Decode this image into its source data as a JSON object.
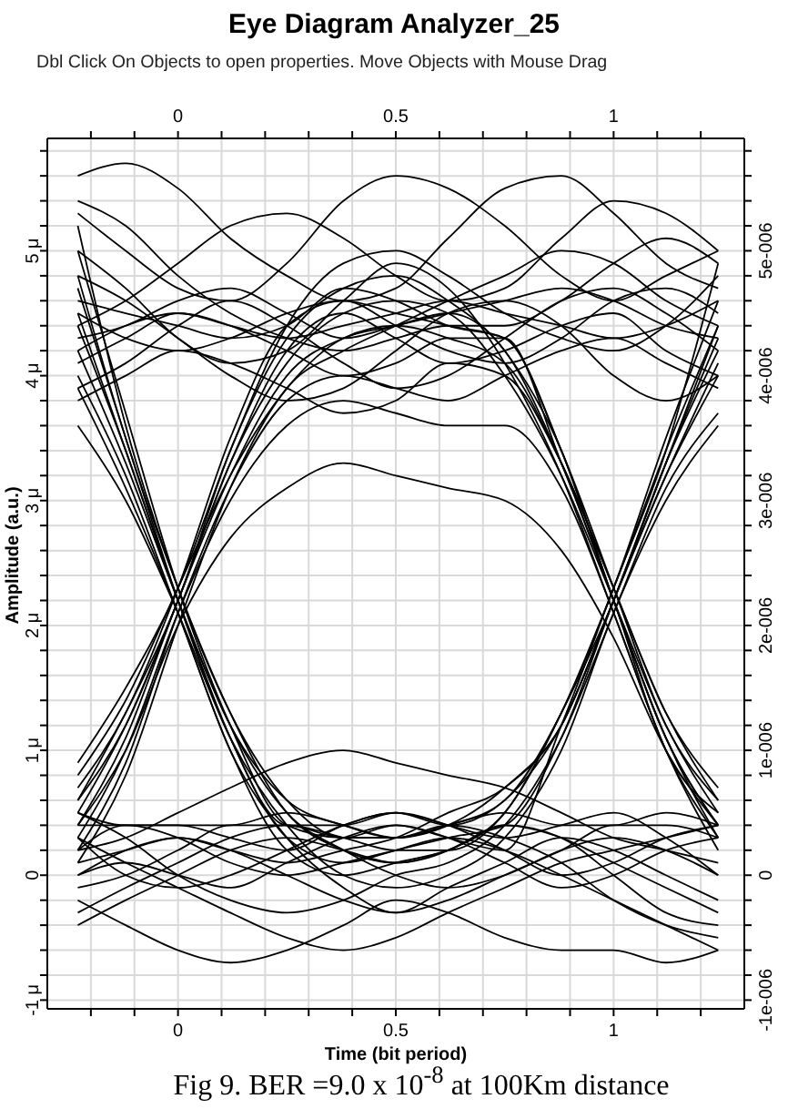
{
  "chart_data": {
    "type": "line",
    "title": "Eye Diagram Analyzer_25",
    "subtitle": "Dbl Click On Objects to open properties. Move Objects with Mouse Drag",
    "xlabel": "Time (bit period)",
    "ylabel": "Amplitude (a.u.)",
    "annotations": [
      "Fig 9. BER =9.0 x 10$^{-8}$ at 100Km distance"
    ],
    "x": [
      -0.23,
      -0.12,
      0,
      0.12,
      0.25,
      0.38,
      0.5,
      0.62,
      0.75,
      0.88,
      1,
      1.12,
      1.24
    ],
    "series": [
      {
        "color": "#000000",
        "values": [
          5.6,
          5.7,
          5.5,
          5.1,
          4.8,
          4.6,
          4.7,
          5.1,
          5.5,
          5.6,
          5.3,
          4.9,
          4.7
        ]
      },
      {
        "color": "#000000",
        "values": [
          5.3,
          5.0,
          4.7,
          4.6,
          4.9,
          5.4,
          5.6,
          5.5,
          5.2,
          4.8,
          4.6,
          4.8,
          5.0
        ]
      },
      {
        "color": "#000000",
        "values": [
          4.4,
          4.6,
          4.9,
          5.2,
          5.3,
          5.1,
          4.8,
          4.6,
          4.7,
          5.1,
          5.4,
          5.3,
          5.0
        ]
      },
      {
        "color": "#000000",
        "values": [
          4.5,
          4.3,
          4.2,
          4.3,
          4.5,
          4.6,
          4.4,
          4.2,
          4.1,
          4.3,
          4.6,
          4.7,
          4.5
        ]
      },
      {
        "color": "#000000",
        "values": [
          3.9,
          4.1,
          4.4,
          4.6,
          4.4,
          4.1,
          3.9,
          4.0,
          4.3,
          4.6,
          4.7,
          4.5,
          4.2
        ]
      },
      {
        "color": "#000000",
        "values": [
          4.8,
          4.6,
          4.3,
          4.0,
          3.8,
          3.9,
          4.2,
          4.5,
          4.6,
          4.4,
          4.0,
          3.8,
          4.0
        ]
      },
      {
        "color": "#000000",
        "values": [
          4.2,
          4.4,
          4.5,
          4.4,
          4.3,
          4.4,
          4.5,
          4.6,
          4.5,
          4.4,
          4.3,
          4.4,
          4.6
        ]
      },
      {
        "color": "#000000",
        "values": [
          5.4,
          5.2,
          4.8,
          4.5,
          4.3,
          4.2,
          4.3,
          4.4,
          4.4,
          4.6,
          4.9,
          5.1,
          4.9
        ]
      },
      {
        "color": "#000000",
        "values": [
          0.1,
          0.2,
          0.3,
          0.2,
          0,
          -0.2,
          -0.3,
          -0.1,
          0.1,
          0.3,
          0.2,
          0,
          -0.2
        ]
      },
      {
        "color": "#000000",
        "values": [
          -0.4,
          -0.2,
          0,
          0.2,
          0.3,
          0.2,
          0.1,
          0.2,
          0.4,
          0.3,
          0.1,
          -0.1,
          -0.3
        ]
      },
      {
        "color": "#000000",
        "values": [
          0.3,
          0.1,
          -0.1,
          -0.3,
          -0.5,
          -0.6,
          -0.5,
          -0.3,
          -0.1,
          0.1,
          0.2,
          0.3,
          0.4
        ]
      },
      {
        "color": "#000000",
        "values": [
          0.4,
          0.4,
          0.3,
          0.1,
          0,
          0.1,
          0.2,
          0.3,
          0.2,
          0,
          -0.2,
          -0.4,
          -0.6
        ]
      },
      {
        "color": "#000000",
        "values": [
          -0.2,
          -0.4,
          -0.6,
          -0.7,
          -0.6,
          -0.4,
          -0.2,
          -0.3,
          -0.5,
          -0.6,
          -0.6,
          -0.7,
          -0.6
        ]
      },
      {
        "color": "#000000",
        "values": [
          0,
          0.1,
          0,
          -0.1,
          0.1,
          0.3,
          0.4,
          0.3,
          0.1,
          -0.1,
          0,
          0.2,
          0.3
        ]
      },
      {
        "color": "#000000",
        "values": [
          0.2,
          0.3,
          0.5,
          0.7,
          0.9,
          1.0,
          0.9,
          0.8,
          0.7,
          0.5,
          0.3,
          0.2,
          0.1
        ]
      },
      {
        "color": "#000000",
        "values": [
          0.5,
          0.4,
          0.4,
          0.4,
          0.5,
          0.4,
          0.3,
          0.4,
          0.5,
          0.4,
          0.4,
          0.5,
          0.4
        ]
      },
      {
        "color": "#000000",
        "values": [
          0.3,
          0,
          -0.1,
          0,
          0.2,
          0.4,
          0.5,
          0.4,
          0.3,
          0.4,
          0.5,
          0.3,
          0
        ]
      },
      {
        "color": "#000000",
        "values": [
          0.5,
          1.2,
          2.2,
          3.3,
          4.1,
          4.5,
          4.6,
          4.5,
          4.0,
          3.2,
          2.2,
          1.2,
          0.5
        ]
      },
      {
        "color": "#000000",
        "values": [
          0.8,
          1.4,
          2.3,
          3.2,
          3.9,
          4.3,
          4.4,
          4.3,
          4.1,
          3.3,
          2.3,
          1.3,
          0.6
        ]
      },
      {
        "color": "#000000",
        "values": [
          0.3,
          1.0,
          2.1,
          3.0,
          3.6,
          3.8,
          3.7,
          3.6,
          3.6,
          3.1,
          2.1,
          1.0,
          0.3
        ]
      },
      {
        "color": "#000000",
        "values": [
          0.6,
          1.3,
          2.2,
          3.4,
          4.3,
          4.7,
          4.8,
          4.6,
          4.2,
          3.4,
          2.2,
          1.1,
          0.4
        ]
      },
      {
        "color": "#000000",
        "values": [
          0.4,
          1.0,
          2.0,
          2.7,
          3.1,
          3.3,
          3.2,
          3.1,
          3.0,
          2.6,
          1.9,
          1.0,
          0.4
        ]
      },
      {
        "color": "#000000",
        "values": [
          0.7,
          1.3,
          2.3,
          3.5,
          4.4,
          4.6,
          4.5,
          4.4,
          4.3,
          3.4,
          2.3,
          1.2,
          0.6
        ]
      },
      {
        "color": "#000000",
        "values": [
          4.2,
          3.3,
          2.2,
          1.2,
          0.6,
          0.4,
          0.3,
          0.4,
          0.7,
          1.2,
          2.2,
          3.2,
          4.1
        ]
      },
      {
        "color": "#000000",
        "values": [
          4.8,
          3.5,
          2.3,
          1.3,
          0.5,
          0.2,
          0.1,
          0.2,
          0.5,
          1.3,
          2.2,
          3.3,
          4.3
        ]
      },
      {
        "color": "#000000",
        "values": [
          3.6,
          3.0,
          2.1,
          1.1,
          0.4,
          0,
          -0.1,
          0,
          0.3,
          1.0,
          2.1,
          3.0,
          3.6
        ]
      },
      {
        "color": "#000000",
        "values": [
          4.5,
          3.4,
          2.2,
          1.1,
          0.3,
          0.1,
          0.2,
          0.3,
          0.4,
          1.1,
          2.2,
          3.3,
          4.4
        ]
      },
      {
        "color": "#000000",
        "values": [
          5.0,
          3.7,
          2.3,
          1.2,
          0.4,
          0.3,
          0.4,
          0.3,
          0.2,
          1.2,
          2.3,
          3.4,
          4.9
        ]
      },
      {
        "color": "#000000",
        "values": [
          0.4,
          1.1,
          2.2,
          3.2,
          4.0,
          4.3,
          4.4,
          4.5,
          4.6,
          4.7,
          4.6,
          4.4,
          4.3
        ]
      },
      {
        "color": "#000000",
        "values": [
          0.9,
          1.5,
          2.3,
          3.4,
          4.4,
          4.9,
          5.0,
          4.8,
          4.5,
          4.3,
          4.2,
          4.4,
          4.8
        ]
      },
      {
        "color": "#000000",
        "values": [
          0.2,
          0.9,
          2.1,
          3.1,
          3.8,
          4.0,
          3.9,
          3.8,
          4.0,
          4.2,
          4.3,
          4.1,
          3.9
        ]
      },
      {
        "color": "#000000",
        "values": [
          0.6,
          1.2,
          2.2,
          3.3,
          4.2,
          4.5,
          4.3,
          4.1,
          4.2,
          4.4,
          4.5,
          4.2,
          4.0
        ]
      },
      {
        "color": "#000000",
        "values": [
          0.1,
          0.8,
          2.0,
          3.1,
          3.9,
          4.2,
          4.4,
          4.6,
          4.8,
          5.0,
          4.9,
          4.6,
          4.4
        ]
      },
      {
        "color": "#000000",
        "values": [
          4.3,
          4.4,
          4.6,
          4.7,
          4.5,
          4.3,
          4.4,
          4.5,
          4.2,
          3.3,
          2.2,
          1.1,
          0.4
        ]
      },
      {
        "color": "#000000",
        "values": [
          5.0,
          4.7,
          4.3,
          4.1,
          4.2,
          4.6,
          4.9,
          4.7,
          4.1,
          3.2,
          2.1,
          1.0,
          0.2
        ]
      },
      {
        "color": "#000000",
        "values": [
          3.8,
          4.0,
          4.2,
          4.1,
          3.9,
          3.7,
          3.8,
          4.1,
          4.0,
          3.3,
          2.3,
          1.3,
          0.7
        ]
      },
      {
        "color": "#000000",
        "values": [
          4.6,
          4.5,
          4.4,
          4.3,
          4.4,
          4.7,
          4.6,
          4.4,
          4.3,
          3.4,
          2.2,
          1.1,
          0.3
        ]
      },
      {
        "color": "#000000",
        "values": [
          4.1,
          4.3,
          4.5,
          4.4,
          4.2,
          4.0,
          4.1,
          4.3,
          4.3,
          3.3,
          2.2,
          1.0,
          0.5
        ]
      },
      {
        "color": "#000000",
        "values": [
          4.4,
          3.4,
          2.2,
          1.2,
          0.5,
          0.2,
          0,
          -0.1,
          0,
          0.2,
          0.3,
          0.2,
          0
        ]
      },
      {
        "color": "#000000",
        "values": [
          5.2,
          3.6,
          2.3,
          1.3,
          0.6,
          0.3,
          0.3,
          0.4,
          0.3,
          0.1,
          -0.2,
          -0.4,
          -0.5
        ]
      },
      {
        "color": "#000000",
        "values": [
          3.9,
          3.1,
          2.1,
          1.0,
          0.3,
          -0.1,
          -0.3,
          -0.2,
          0,
          0.2,
          0.4,
          0.4,
          0.3
        ]
      },
      {
        "color": "#000000",
        "values": [
          4.7,
          3.5,
          2.2,
          1.1,
          0.4,
          0.4,
          0.5,
          0.4,
          0.2,
          0,
          0.1,
          0.3,
          0.4
        ]
      },
      {
        "color": "#000000",
        "values": [
          4.0,
          3.2,
          2.1,
          1.0,
          0.2,
          0,
          0.1,
          0.2,
          0.4,
          0.3,
          0,
          -0.3,
          -0.4
        ]
      },
      {
        "color": "#000000",
        "values": [
          0,
          0.2,
          0.3,
          0.2,
          0.1,
          0.2,
          0.3,
          0.5,
          0.7,
          1.2,
          2.2,
          3.2,
          4.0
        ]
      },
      {
        "color": "#000000",
        "values": [
          -0.3,
          -0.1,
          0.1,
          0.3,
          0.4,
          0.3,
          0.2,
          0.2,
          0.5,
          1.3,
          2.3,
          3.4,
          4.4
        ]
      },
      {
        "color": "#000000",
        "values": [
          0.5,
          0.3,
          0,
          -0.2,
          -0.3,
          -0.2,
          0,
          0.1,
          0.4,
          1.1,
          2.1,
          3.1,
          3.7
        ]
      },
      {
        "color": "#000000",
        "values": [
          0.2,
          0.4,
          0.4,
          0.3,
          0.2,
          0.4,
          0.5,
          0.4,
          0.6,
          1.2,
          2.2,
          3.3,
          4.2
        ]
      },
      {
        "color": "#000000",
        "values": [
          -0.1,
          0,
          0.2,
          0.4,
          0.4,
          0.3,
          0.3,
          0.4,
          0.6,
          1.3,
          2.3,
          3.5,
          4.6
        ]
      }
    ],
    "xlim": [
      -0.3,
      1.3
    ],
    "xticks": [
      {
        "value": -0.2,
        "label": null
      },
      {
        "value": -0.1,
        "label": null
      },
      0,
      {
        "value": 0.1,
        "label": null
      },
      {
        "value": 0.2,
        "label": null
      },
      {
        "value": 0.3,
        "label": null
      },
      {
        "value": 0.4,
        "label": null
      },
      0.5,
      {
        "value": 0.6,
        "label": null
      },
      {
        "value": 0.7,
        "label": null
      },
      {
        "value": 0.8,
        "label": null
      },
      {
        "value": 0.9,
        "label": null
      },
      1,
      {
        "value": 1.1,
        "label": null
      },
      {
        "value": 1.2,
        "label": null
      }
    ],
    "x2lim": [
      -0.3,
      1.3
    ],
    "x2ticks": [
      {
        "value": -0.2,
        "label": null
      },
      {
        "value": -0.1,
        "label": null
      },
      0,
      {
        "value": 0.1,
        "label": null
      },
      {
        "value": 0.2,
        "label": null
      },
      {
        "value": 0.3,
        "label": null
      },
      {
        "value": 0.4,
        "label": null
      },
      0.5,
      {
        "value": 0.6,
        "label": null
      },
      {
        "value": 0.7,
        "label": null
      },
      {
        "value": 0.8,
        "label": null
      },
      {
        "value": 0.9,
        "label": null
      },
      1,
      {
        "value": 1.1,
        "label": null
      },
      {
        "value": 1.2,
        "label": null
      }
    ],
    "ylim": [
      -1.07,
      5.9
    ],
    "yticks": [
      {
        "value": -1,
        "label": "-1 μ"
      },
      {
        "value": -0.8,
        "label": null
      },
      {
        "value": -0.6,
        "label": null
      },
      {
        "value": -0.4,
        "label": null
      },
      {
        "value": -0.2,
        "label": null
      },
      0,
      {
        "value": 0.2,
        "label": null
      },
      {
        "value": 0.4,
        "label": null
      },
      {
        "value": 0.6,
        "label": null
      },
      {
        "value": 0.8,
        "label": null
      },
      {
        "value": 1,
        "label": "1 μ"
      },
      {
        "value": 1.2,
        "label": null
      },
      {
        "value": 1.4,
        "label": null
      },
      {
        "value": 1.6,
        "label": null
      },
      {
        "value": 1.8,
        "label": null
      },
      {
        "value": 2,
        "label": "2 μ"
      },
      {
        "value": 2.2,
        "label": null
      },
      {
        "value": 2.4,
        "label": null
      },
      {
        "value": 2.6,
        "label": null
      },
      {
        "value": 2.8,
        "label": null
      },
      {
        "value": 3,
        "label": "3 μ"
      },
      {
        "value": 3.2,
        "label": null
      },
      {
        "value": 3.4,
        "label": null
      },
      {
        "value": 3.6,
        "label": null
      },
      {
        "value": 3.8,
        "label": null
      },
      {
        "value": 4,
        "label": "4 μ"
      },
      {
        "value": 4.2,
        "label": null
      },
      {
        "value": 4.4,
        "label": null
      },
      {
        "value": 4.6,
        "label": null
      },
      {
        "value": 4.8,
        "label": null
      },
      {
        "value": 5,
        "label": "5 μ"
      },
      {
        "value": 5.2,
        "label": null
      },
      {
        "value": 5.4,
        "label": null
      },
      {
        "value": 5.6,
        "label": null
      },
      {
        "value": 5.8,
        "label": null
      }
    ],
    "y2lim": [
      -1.07e-06,
      5.9e-06
    ],
    "y2ticks": [
      {
        "value": -1e-06,
        "label": "-1e-006"
      },
      {
        "value": -8e-07,
        "label": null
      },
      {
        "value": -6e-07,
        "label": null
      },
      {
        "value": -4e-07,
        "label": null
      },
      {
        "value": -2e-07,
        "label": null
      },
      0,
      {
        "value": 2e-07,
        "label": null
      },
      {
        "value": 4e-07,
        "label": null
      },
      {
        "value": 6e-07,
        "label": null
      },
      {
        "value": 8e-07,
        "label": null
      },
      {
        "value": 1e-06,
        "label": "1e-006"
      },
      {
        "value": 1.2e-06,
        "label": null
      },
      {
        "value": 1.4e-06,
        "label": null
      },
      {
        "value": 1.6e-06,
        "label": null
      },
      {
        "value": 1.8e-06,
        "label": null
      },
      {
        "value": 2e-06,
        "label": "2e-006"
      },
      {
        "value": 2.2e-06,
        "label": null
      },
      {
        "value": 2.4e-06,
        "label": null
      },
      {
        "value": 2.6e-06,
        "label": null
      },
      {
        "value": 2.8e-06,
        "label": null
      },
      {
        "value": 3e-06,
        "label": "3e-006"
      },
      {
        "value": 3.2e-06,
        "label": null
      },
      {
        "value": 3.4e-06,
        "label": null
      },
      {
        "value": 3.6e-06,
        "label": null
      },
      {
        "value": 3.8e-06,
        "label": null
      },
      {
        "value": 4e-06,
        "label": "4e-006"
      },
      {
        "value": 4.2e-06,
        "label": null
      },
      {
        "value": 4.4e-06,
        "label": null
      },
      {
        "value": 4.6e-06,
        "label": null
      },
      {
        "value": 4.8e-06,
        "label": null
      },
      {
        "value": 5e-06,
        "label": "5e-006"
      },
      {
        "value": 5.2e-06,
        "label": null
      },
      {
        "value": 5.4e-06,
        "label": null
      },
      {
        "value": 5.6e-06,
        "label": null
      },
      {
        "value": 5.8e-06,
        "label": null
      }
    ],
    "grid": true
  }
}
